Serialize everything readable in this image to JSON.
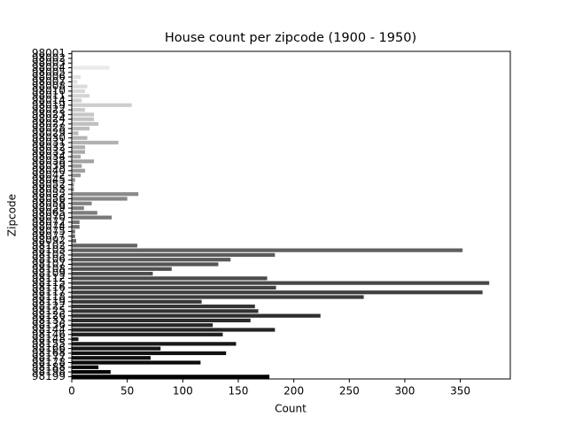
{
  "chart_data": {
    "type": "barh",
    "title": "House count per zipcode (1900 - 1950)",
    "xlabel": "Count",
    "ylabel": "Zipcode",
    "categories": [
      "98001",
      "98002",
      "98003",
      "98004",
      "98005",
      "98006",
      "98007",
      "98008",
      "98010",
      "98011",
      "98014",
      "98019",
      "98022",
      "98023",
      "98024",
      "98027",
      "98028",
      "98029",
      "98030",
      "98031",
      "98032",
      "98033",
      "98034",
      "98038",
      "98039",
      "98040",
      "98042",
      "98045",
      "98052",
      "98053",
      "98055",
      "98056",
      "98058",
      "98059",
      "98065",
      "98070",
      "98072",
      "98074",
      "98075",
      "98077",
      "98092",
      "98102",
      "98103",
      "98105",
      "98106",
      "98107",
      "98108",
      "98109",
      "98112",
      "98115",
      "98116",
      "98117",
      "98118",
      "98119",
      "98122",
      "98125",
      "98126",
      "98133",
      "98136",
      "98144",
      "98146",
      "98148",
      "98155",
      "98166",
      "98168",
      "98177",
      "98178",
      "98188",
      "98198",
      "98199"
    ],
    "values": [
      1,
      1,
      2,
      34,
      1,
      8,
      5,
      14,
      12,
      16,
      9,
      54,
      12,
      20,
      20,
      24,
      16,
      6,
      14,
      42,
      12,
      12,
      8,
      20,
      9,
      12,
      8,
      3,
      2,
      2,
      60,
      50,
      18,
      11,
      23,
      36,
      7,
      7,
      3,
      3,
      4,
      59,
      352,
      183,
      143,
      132,
      90,
      73,
      176,
      376,
      184,
      370,
      263,
      117,
      165,
      168,
      224,
      161,
      127,
      183,
      136,
      6,
      148,
      80,
      139,
      71,
      116,
      24,
      35,
      178
    ],
    "palette": [
      "#f5f5f5",
      "#000000"
    ],
    "xlim": [
      0,
      395
    ],
    "xticks": [
      0,
      50,
      100,
      150,
      200,
      250,
      300,
      350
    ]
  }
}
